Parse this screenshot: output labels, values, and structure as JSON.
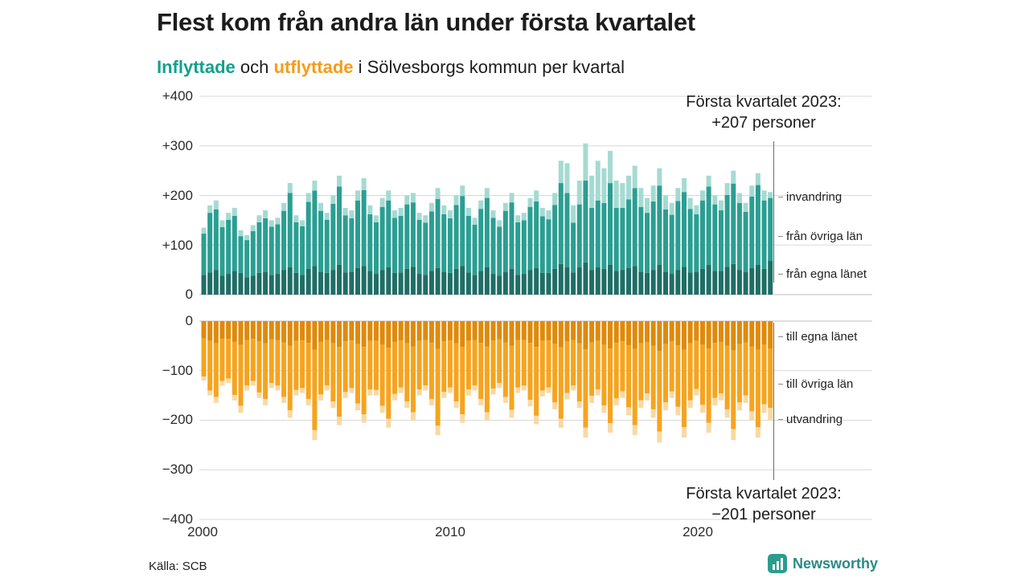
{
  "header": {
    "title": "Flest kom från andra län under första kvartalet",
    "subtitle": {
      "inflyttade": "Inflyttade",
      "mid": " och ",
      "utflyttade": "utflyttade",
      "rest": " i Sölvesborgs kommun per kvartal"
    }
  },
  "annotations": {
    "top_line1": "Första kvartalet 2023:",
    "top_line2": "+207 personer",
    "bottom_line1": "Första kvartalet 2023:",
    "bottom_line2": "−201 personer"
  },
  "axes": {
    "top_ticks": {
      "t400": "+400",
      "t300": "+300",
      "t200": "+200",
      "t100": "+100",
      "t0": "0"
    },
    "bottom_ticks": {
      "b0": "0",
      "b100": "−100",
      "b200": "−200",
      "b300": "−300",
      "b400": "−400"
    },
    "x_ticks": {
      "x2000": "2000",
      "x2010": "2010",
      "x2020": "2020"
    }
  },
  "segment_labels": {
    "invandring": "invandring",
    "fran_ovriga_lan": "från övriga län",
    "fran_egna_lanet": "från egna länet",
    "till_egna_lanet": "till egna länet",
    "till_ovriga_lan": "till övriga län",
    "utvandring": "utvandring"
  },
  "footer": {
    "source": "Källa: SCB",
    "brand": "Newsworthy"
  },
  "colors": {
    "inflow_dark": "#1f6e66",
    "inflow_mid": "#2b9e92",
    "inflow_light": "#a5dad2",
    "outflow_dark": "#df8a0c",
    "outflow_mid": "#f6a41f",
    "outflow_light": "#f9d9a2",
    "subtitle_in": "#14a08f",
    "subtitle_out": "#f69c1d",
    "grid": "#d8d8d8",
    "zero_axis": "#bdbdbd",
    "annotation_line": "#6b6b6b",
    "brand_teal": "#2a9d8f",
    "brand_text": "#2a8a84"
  },
  "chart_data": {
    "type": "bar",
    "subtype": "stacked-diverging",
    "title": "Inflyttade och utflyttade i Sölvesborgs kommun per kvartal",
    "x_start": "2000 Q1",
    "x_end": "2023 Q1",
    "quarters_count": 93,
    "x_tick_labels": [
      "2000",
      "2010",
      "2020"
    ],
    "ylim": [
      -400,
      400
    ],
    "grid": true,
    "inflow_series": [
      {
        "name": "från egna länet",
        "color": "#1f6e66",
        "values": [
          40,
          45,
          50,
          38,
          42,
          48,
          44,
          35,
          38,
          44,
          46,
          40,
          42,
          50,
          55,
          44,
          40,
          52,
          58,
          46,
          44,
          50,
          60,
          45,
          46,
          54,
          58,
          48,
          42,
          50,
          55,
          44,
          45,
          52,
          56,
          42,
          40,
          48,
          54,
          46,
          44,
          52,
          58,
          45,
          40,
          48,
          55,
          42,
          38,
          46,
          52,
          40,
          42,
          50,
          54,
          44,
          44,
          52,
          62,
          55,
          45,
          55,
          65,
          50,
          55,
          52,
          60,
          48,
          50,
          54,
          58,
          46,
          44,
          50,
          60,
          46,
          42,
          50,
          56,
          45,
          46,
          52,
          60,
          48,
          48,
          56,
          62,
          50,
          46,
          54,
          60,
          52,
          68
        ]
      },
      {
        "name": "från övriga län",
        "color": "#2b9e92",
        "values": [
          83,
          120,
          122,
          98,
          109,
          111,
          74,
          75,
          90,
          102,
          108,
          97,
          100,
          119,
          150,
          102,
          98,
          135,
          152,
          123,
          107,
          133,
          158,
          115,
          108,
          136,
          153,
          114,
          104,
          127,
          135,
          111,
          114,
          130,
          130,
          109,
          105,
          120,
          139,
          116,
          110,
          129,
          141,
          114,
          101,
          125,
          140,
          113,
          99,
          123,
          134,
          106,
          108,
          127,
          134,
          114,
          108,
          129,
          163,
          150,
          100,
          127,
          165,
          125,
          135,
          133,
          165,
          127,
          125,
          138,
          157,
          131,
          121,
          138,
          160,
          126,
          119,
          139,
          151,
          128,
          116,
          138,
          158,
          134,
          122,
          145,
          162,
          135,
          121,
          144,
          161,
          138,
          127
        ]
      },
      {
        "name": "invandring",
        "color": "#a5dad2",
        "values": [
          12,
          15,
          18,
          14,
          14,
          16,
          12,
          10,
          12,
          14,
          16,
          13,
          13,
          16,
          20,
          14,
          12,
          18,
          20,
          16,
          14,
          17,
          22,
          15,
          16,
          20,
          24,
          18,
          14,
          18,
          20,
          15,
          16,
          18,
          19,
          14,
          15,
          17,
          22,
          18,
          16,
          19,
          21,
          16,
          14,
          17,
          20,
          15,
          13,
          16,
          19,
          14,
          15,
          18,
          22,
          17,
          18,
          24,
          45,
          60,
          35,
          48,
          75,
          65,
          80,
          70,
          65,
          55,
          50,
          48,
          45,
          38,
          30,
          32,
          35,
          28,
          24,
          26,
          28,
          22,
          18,
          20,
          22,
          18,
          20,
          24,
          26,
          20,
          18,
          22,
          24,
          20,
          12
        ]
      }
    ],
    "outflow_series": [
      {
        "name": "till egna länet",
        "color": "#df8a0c",
        "values": [
          35,
          40,
          45,
          36,
          36,
          42,
          48,
          38,
          36,
          41,
          45,
          37,
          38,
          43,
          50,
          40,
          39,
          44,
          58,
          42,
          38,
          45,
          52,
          41,
          39,
          46,
          52,
          40,
          40,
          47,
          54,
          42,
          39,
          45,
          51,
          40,
          38,
          44,
          56,
          41,
          39,
          45,
          52,
          40,
          38,
          44,
          51,
          39,
          37,
          43,
          50,
          38,
          38,
          44,
          52,
          40,
          39,
          46,
          53,
          41,
          38,
          45,
          57,
          43,
          40,
          48,
          55,
          44,
          41,
          49,
          56,
          45,
          42,
          50,
          60,
          46,
          41,
          49,
          58,
          45,
          40,
          48,
          55,
          44,
          42,
          50,
          59,
          46,
          43,
          51,
          58,
          47,
          55
        ]
      },
      {
        "name": "till övriga län",
        "color": "#f6a41f",
        "values": [
          77,
          100,
          108,
          85,
          80,
          107,
          123,
          92,
          85,
          103,
          112,
          88,
          92,
          110,
          130,
          99,
          96,
          113,
          162,
          106,
          92,
          117,
          141,
          102,
          96,
          120,
          136,
          98,
          99,
          124,
          143,
          105,
          95,
          117,
          133,
          98,
          92,
          113,
          155,
          102,
          95,
          117,
          136,
          98,
          92,
          113,
          133,
          97,
          88,
          110,
          129,
          96,
          92,
          115,
          139,
          100,
          95,
          118,
          144,
          104,
          92,
          117,
          158,
          108,
          98,
          122,
          151,
          112,
          101,
          125,
          154,
          115,
          104,
          128,
          163,
          118,
          101,
          124,
          156,
          115,
          97,
          121,
          150,
          111,
          104,
          128,
          159,
          118,
          107,
          131,
          156,
          121,
          120
        ]
      },
      {
        "name": "utvandring",
        "color": "#f9d9a2",
        "values": [
          8,
          10,
          12,
          9,
          9,
          11,
          14,
          10,
          9,
          11,
          13,
          10,
          10,
          12,
          15,
          11,
          10,
          13,
          20,
          12,
          10,
          13,
          17,
          12,
          10,
          14,
          17,
          12,
          11,
          14,
          18,
          13,
          11,
          13,
          16,
          12,
          10,
          13,
          19,
          12,
          11,
          13,
          17,
          12,
          10,
          13,
          16,
          12,
          10,
          12,
          16,
          11,
          10,
          13,
          17,
          12,
          11,
          14,
          18,
          13,
          10,
          13,
          20,
          14,
          12,
          15,
          19,
          14,
          13,
          16,
          20,
          15,
          14,
          17,
          22,
          16,
          13,
          17,
          21,
          15,
          13,
          16,
          20,
          15,
          14,
          17,
          22,
          16,
          15,
          18,
          21,
          17,
          26
        ]
      }
    ],
    "highlight": {
      "quarter": "2023 Q1",
      "inflow_total": 207,
      "outflow_total": -201
    }
  }
}
